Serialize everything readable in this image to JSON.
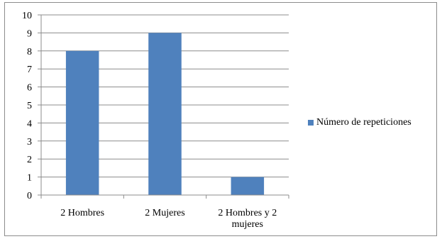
{
  "chart_data": {
    "type": "bar",
    "categories": [
      "2 Hombres",
      "2 Mujeres",
      "2 Hombres y 2 mujeres"
    ],
    "series": [
      {
        "name": "Número de repeticiones",
        "values": [
          8,
          9,
          1
        ],
        "color": "#4f81bd"
      }
    ],
    "ylim": [
      0,
      10
    ],
    "yticks": [
      0,
      1,
      2,
      3,
      4,
      5,
      6,
      7,
      8,
      9,
      10
    ],
    "grid": true,
    "legend_position": "right"
  }
}
